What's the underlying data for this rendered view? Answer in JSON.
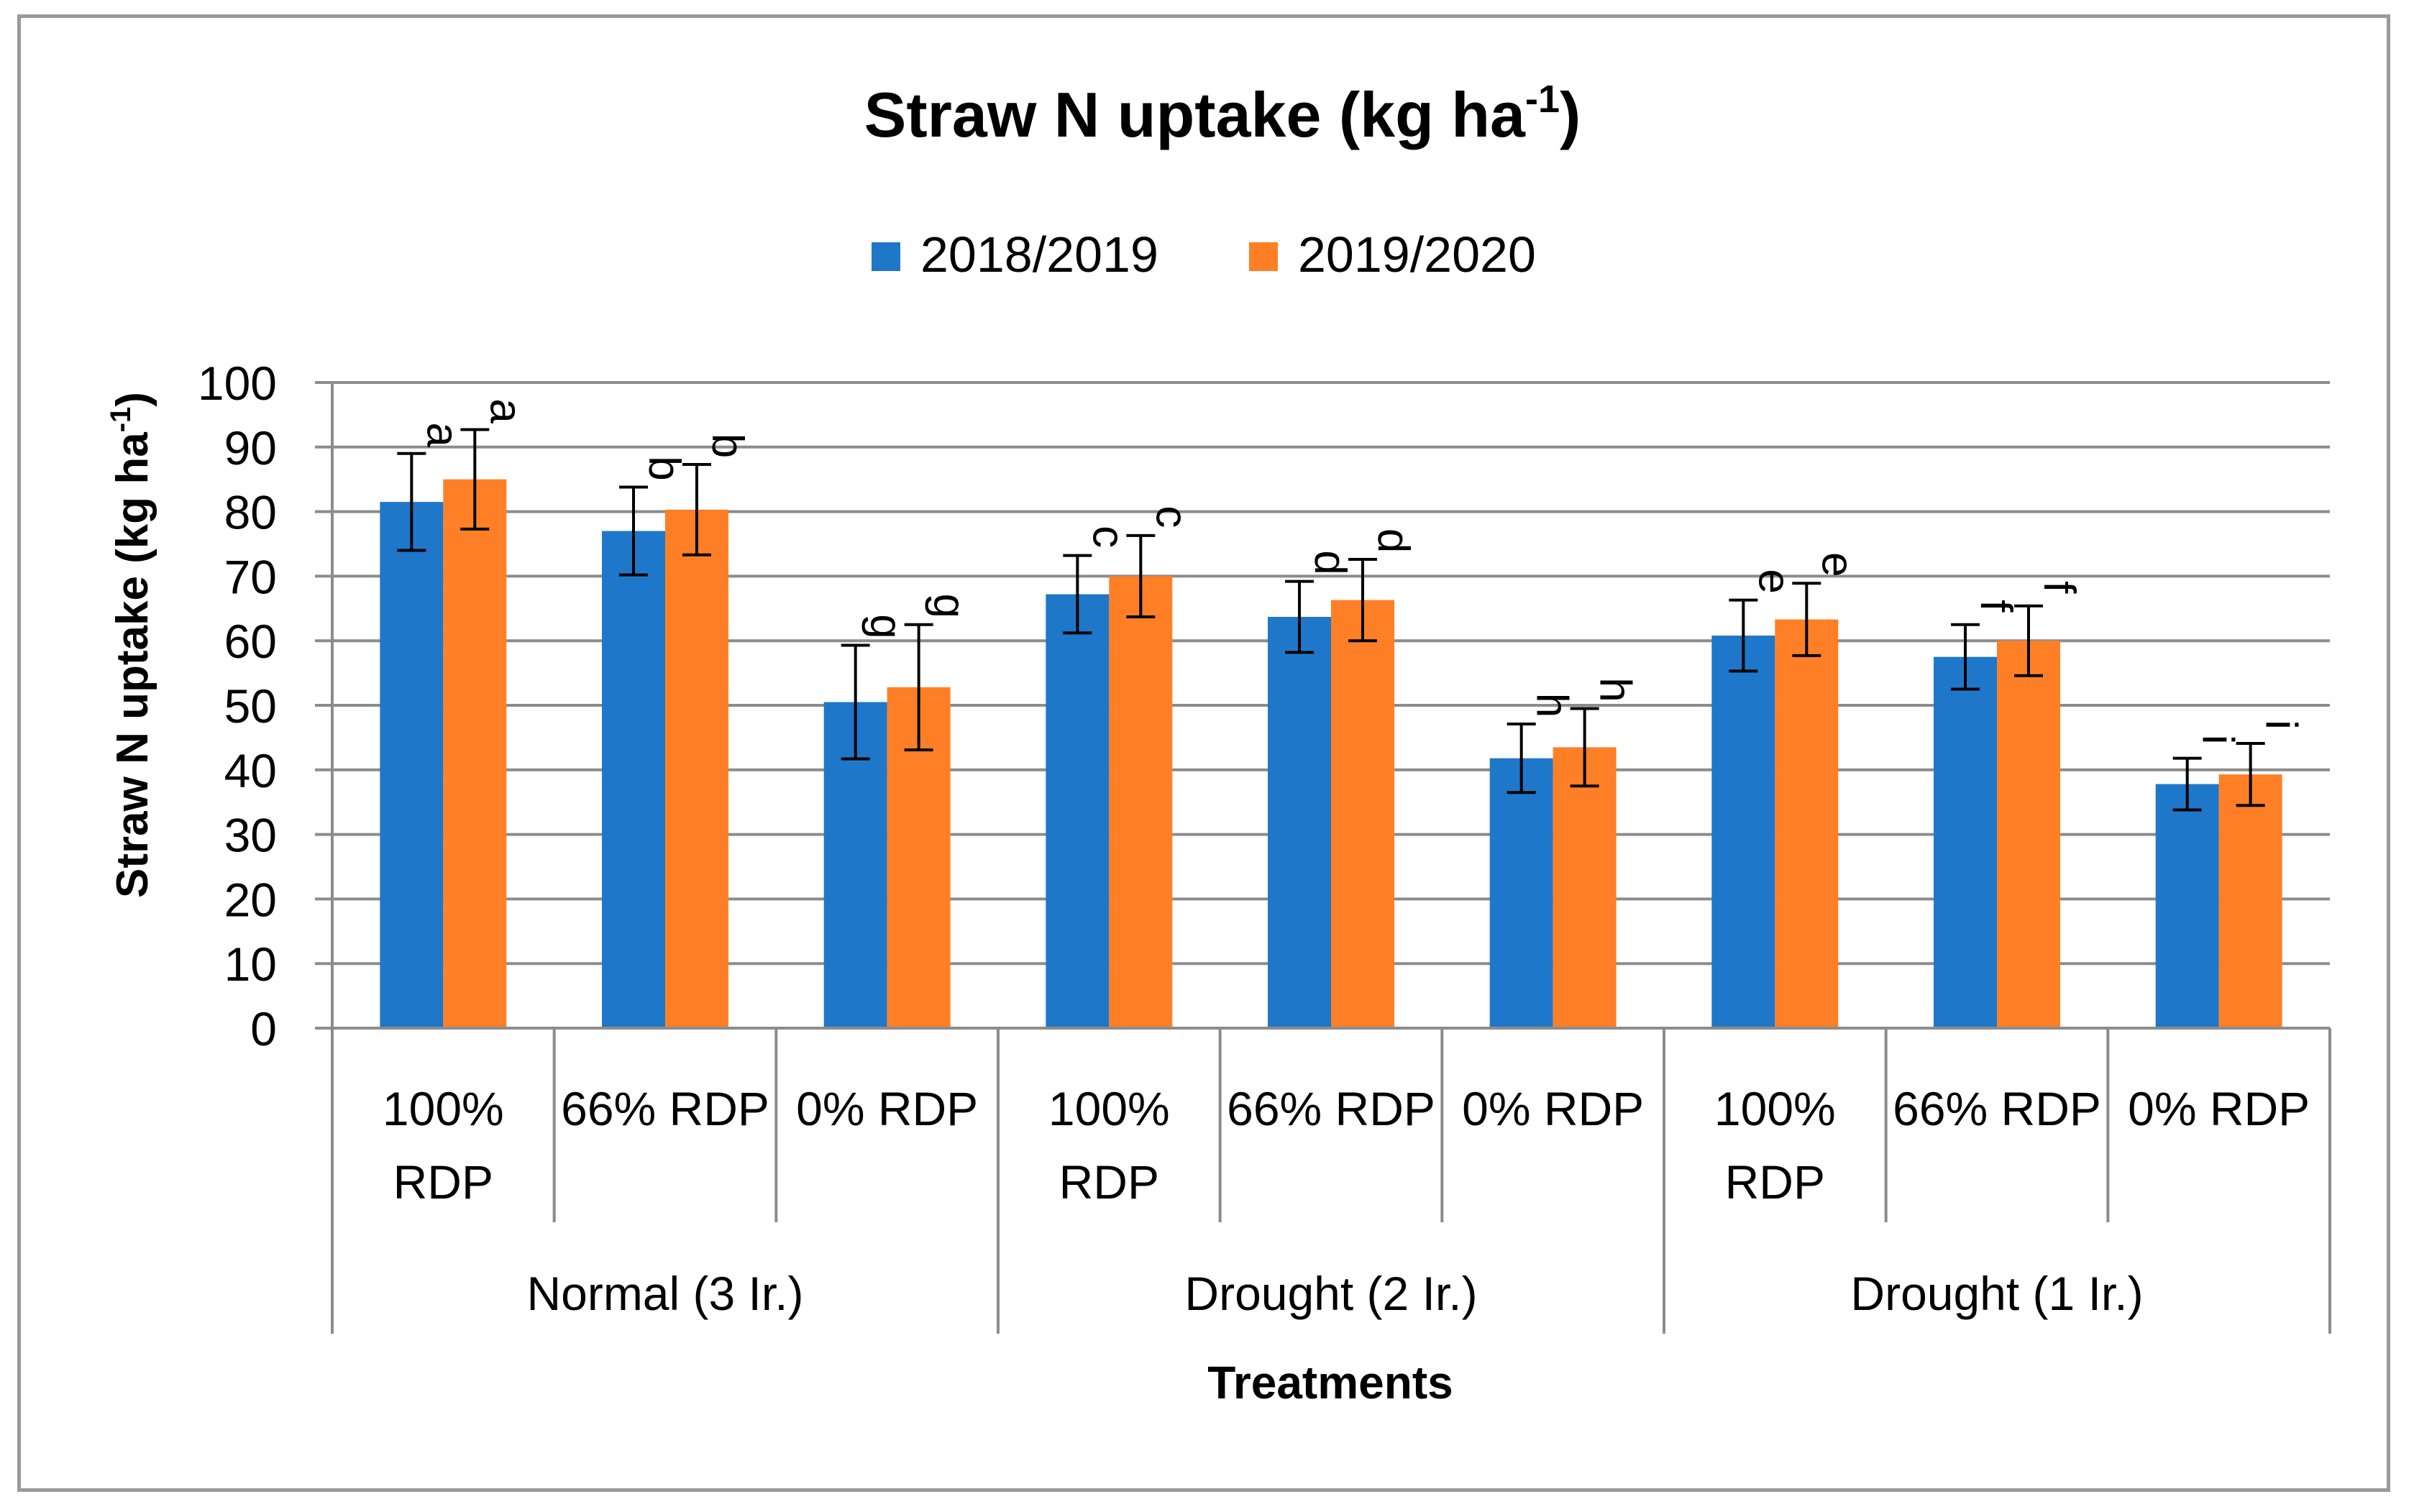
{
  "chart_data": {
    "type": "bar",
    "title": {
      "main": "Straw N uptake (kg ha",
      "superscript": "-1",
      "close": ")"
    },
    "ylabel": {
      "main": "Straw N uptake (kg ha",
      "superscript": "-1",
      "close": ")"
    },
    "xlabel": "Treatments",
    "ylim": [
      0,
      100
    ],
    "yticks": [
      "0",
      "10",
      "20",
      "30",
      "40",
      "50",
      "60",
      "70",
      "80",
      "90",
      "100"
    ],
    "grid": true,
    "legend_position": "top",
    "groups": [
      {
        "name": "Normal (3 Ir.)",
        "categories": [
          [
            "100%",
            "RDP"
          ],
          [
            "66% RDP"
          ],
          [
            "0% RDP"
          ]
        ]
      },
      {
        "name": "Drought (2 Ir.)",
        "categories": [
          [
            "100%",
            "RDP"
          ],
          [
            "66% RDP"
          ],
          [
            "0% RDP"
          ]
        ]
      },
      {
        "name": "Drought (1 Ir.)",
        "categories": [
          [
            "100%",
            "RDP"
          ],
          [
            "66% RDP"
          ],
          [
            "0% RDP"
          ]
        ]
      }
    ],
    "series": [
      {
        "name": "2018/2019",
        "color": "#1f77c9",
        "values": [
          81.5,
          77.0,
          50.5,
          67.2,
          63.7,
          41.8,
          60.8,
          57.5,
          37.8
        ],
        "errors": [
          7.5,
          6.8,
          8.8,
          6.0,
          5.5,
          5.3,
          5.5,
          5.0,
          4.0
        ],
        "letters": [
          "a",
          "b",
          "g",
          "c",
          "d",
          "h",
          "e",
          "f",
          "i"
        ]
      },
      {
        "name": "2019/2020",
        "color": "#ff7f27",
        "values": [
          85.0,
          80.3,
          52.8,
          70.0,
          66.3,
          43.5,
          63.3,
          60.0,
          39.3
        ],
        "errors": [
          7.7,
          7.0,
          9.7,
          6.3,
          6.3,
          6.0,
          5.6,
          5.4,
          4.8
        ],
        "letters": [
          "a",
          "b",
          "g",
          "c",
          "d",
          "h",
          "e",
          "f",
          "i"
        ]
      }
    ]
  }
}
